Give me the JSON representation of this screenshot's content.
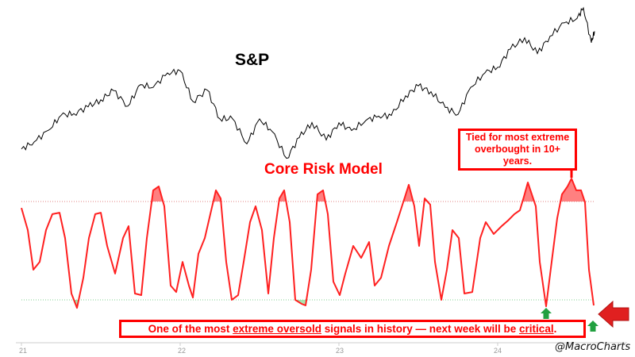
{
  "labels": {
    "sp_title": "S&P",
    "model_title": "Core Risk Model",
    "top_callout": "Tied for most extreme overbought in 10+ years.",
    "bottom_callout": {
      "p1": "One of the most ",
      "u1": "extreme oversold",
      "p2": " signals in history — next week will be ",
      "u2": "critical",
      "p3": "."
    },
    "watermark": "@MacroCharts"
  },
  "colors": {
    "sp": "#000000",
    "model": "#ff2020",
    "overbought_fill": "#ff8080",
    "oversold_fill": "#a8e6b0",
    "upper_line": "#e08080",
    "lower_line": "#80d090",
    "arrow_green": "#22a040",
    "arrow_red": "#e02020"
  },
  "chart_data": [
    {
      "type": "line",
      "title": "S&P",
      "x_ticks": [
        "21",
        "22",
        "23",
        "24"
      ],
      "x_tick_values": [
        21,
        22,
        23,
        24
      ],
      "xlim": [
        21,
        24.62
      ],
      "ylim": [
        3580,
        5667
      ],
      "x": [
        21.0,
        21.08,
        21.17,
        21.25,
        21.33,
        21.42,
        21.5,
        21.58,
        21.67,
        21.75,
        21.83,
        21.92,
        22.0,
        22.08,
        22.17,
        22.25,
        22.33,
        22.42,
        22.5,
        22.58,
        22.67,
        22.75,
        22.83,
        22.92,
        23.0,
        23.08,
        23.17,
        23.25,
        23.33,
        23.42,
        23.5,
        23.58,
        23.67,
        23.75,
        23.83,
        23.92,
        24.0,
        24.08,
        24.17,
        24.25,
        24.33,
        24.42,
        24.5,
        24.54,
        24.59,
        24.61
      ],
      "values": [
        3714,
        3811,
        3973,
        4181,
        4204,
        4297,
        4395,
        4522,
        4307,
        4605,
        4567,
        4766,
        4796,
        4373,
        4530,
        4131,
        4132,
        3785,
        4130,
        3955,
        3585,
        3871,
        4080,
        3839,
        4076,
        3970,
        4109,
        4169,
        4179,
        4450,
        4588,
        4507,
        4288,
        4193,
        4567,
        4769,
        4845,
        5096,
        5254,
        5035,
        5277,
        5460,
        5522,
        5667,
        5186,
        5344
      ]
    },
    {
      "type": "line",
      "title": "Core Risk Model",
      "x_ticks": [
        "21",
        "22",
        "23",
        "24"
      ],
      "x_tick_values": [
        21,
        22,
        23,
        24
      ],
      "xlim": [
        21,
        24.62
      ],
      "ylim": [
        0,
        100
      ],
      "thresholds": {
        "overbought": 80,
        "oversold": 20
      },
      "x": [
        21.0,
        21.04,
        21.075,
        21.115,
        21.155,
        21.195,
        21.24,
        21.275,
        21.315,
        21.35,
        21.39,
        21.425,
        21.465,
        21.5,
        21.54,
        21.59,
        21.64,
        21.675,
        21.715,
        21.755,
        21.79,
        21.83,
        21.865,
        21.9,
        21.94,
        21.975,
        22.015,
        22.055,
        22.08,
        22.115,
        22.155,
        22.19,
        22.225,
        22.255,
        22.29,
        22.325,
        22.365,
        22.4,
        22.44,
        22.475,
        22.515,
        22.555,
        22.59,
        22.625,
        22.655,
        22.69,
        22.725,
        22.765,
        22.79,
        22.825,
        22.865,
        22.9,
        22.93,
        22.965,
        23.005,
        23.04,
        23.09,
        23.14,
        23.19,
        23.225,
        23.265,
        23.315,
        23.365,
        23.405,
        23.44,
        23.475,
        23.505,
        23.54,
        23.575,
        23.605,
        23.645,
        23.68,
        23.715,
        23.755,
        23.79,
        23.84,
        23.89,
        23.925,
        23.975,
        24.025,
        24.065,
        24.105,
        24.14,
        24.165,
        24.19,
        24.215,
        24.24,
        24.265,
        24.305,
        24.34,
        24.375,
        24.405,
        24.44,
        24.465,
        24.495,
        24.525,
        24.55,
        24.575,
        24.605
      ],
      "values": [
        76.1,
        62.6,
        38.4,
        43.2,
        62.6,
        72.3,
        73.2,
        57.7,
        23.9,
        15.1,
        33.5,
        57.7,
        72.3,
        73.2,
        52.9,
        36.0,
        57.7,
        65.0,
        23.9,
        22.9,
        57.7,
        86.8,
        89.2,
        77.1,
        28.7,
        24.8,
        43.2,
        28.7,
        21.4,
        48.1,
        57.7,
        72.3,
        86.8,
        81.9,
        43.2,
        20.0,
        22.9,
        43.2,
        67.4,
        77.1,
        62.6,
        23.9,
        57.7,
        81.9,
        86.8,
        67.4,
        20.0,
        17.6,
        16.6,
        38.4,
        84.4,
        86.8,
        72.3,
        31.1,
        22.9,
        36.0,
        52.9,
        45.6,
        55.3,
        28.7,
        33.5,
        52.9,
        67.4,
        79.5,
        90.2,
        77.1,
        52.9,
        81.9,
        78.1,
        43.2,
        20.0,
        38.4,
        62.6,
        57.7,
        23.9,
        24.8,
        57.7,
        67.4,
        60.2,
        65.0,
        68.4,
        72.3,
        74.7,
        82.9,
        91.6,
        84.4,
        77.1,
        43.2,
        16.1,
        43.2,
        69.8,
        84.4,
        89.2,
        94.0,
        86.8,
        86.8,
        79.5,
        38.4,
        16.6
      ]
    }
  ]
}
